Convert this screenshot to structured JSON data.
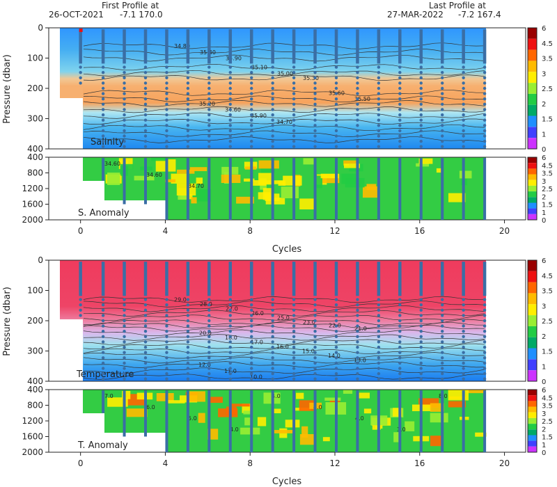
{
  "header": {
    "first_profile_label": "First Profile at",
    "first_profile_date": "26-OCT-2021",
    "first_profile_position": "-7.1  170.0",
    "last_profile_label": "Last Profile at",
    "last_profile_date": "27-MAR-2022",
    "last_profile_position": "-7.2  167.4"
  },
  "colors": {
    "profile_line": "#3a6ea5",
    "profile_point": "#3a6ea5",
    "first_profile_marker": "#ee1111",
    "contour": "#333333",
    "colorbar": [
      "#cc33ff",
      "#4040ff",
      "#1f8fff",
      "#00aa66",
      "#22cc44",
      "#99ee33",
      "#ffee00",
      "#ffbb00",
      "#ff6600",
      "#ee1111",
      "#990000"
    ]
  },
  "chart_data": [
    {
      "type": "heatmap",
      "panel": "upper",
      "variable_label": "Salinity",
      "xlabel": "Cycles",
      "ylabel": "Pressure (dbar)",
      "xlim": [
        -1.5,
        21
      ],
      "x_ticks": [
        "0",
        "4",
        "8",
        "12",
        "16",
        "20"
      ],
      "top": {
        "ylim": [
          0,
          400
        ],
        "y_ticks": [
          "0",
          "100",
          "200",
          "300",
          "400"
        ]
      },
      "anomaly": {
        "label": "S. Anomaly",
        "ylim": [
          400,
          2000
        ],
        "y_ticks": [
          "400",
          "800",
          "1200",
          "1600",
          "2000"
        ]
      },
      "colorbar_ticks": [
        "6",
        "4.5",
        "3.5",
        "3",
        "2.5",
        "2",
        "1.5",
        "1",
        "0"
      ],
      "contour_labels": [
        "34.80",
        "35.40",
        "34.90",
        "35.10",
        "35.00",
        "35.30",
        "35.60",
        "35.50",
        "35.20",
        "34.60",
        "35.90",
        "34.70"
      ],
      "anomaly_contour_labels": [
        "34.60",
        "34.60",
        "34.70"
      ],
      "profile_cycles": [
        0,
        1,
        2,
        3,
        4,
        5,
        6,
        7,
        8,
        9,
        10,
        11,
        12,
        13,
        14,
        15,
        16,
        17,
        18,
        19
      ]
    },
    {
      "type": "heatmap",
      "panel": "lower",
      "variable_label": "Temperature",
      "xlabel": "Cycles",
      "ylabel": "Pressure (dbar)",
      "xlim": [
        -1.5,
        21
      ],
      "x_ticks": [
        "0",
        "4",
        "8",
        "12",
        "16",
        "20"
      ],
      "top": {
        "ylim": [
          0,
          400
        ],
        "y_ticks": [
          "0",
          "100",
          "200",
          "300",
          "400"
        ]
      },
      "anomaly": {
        "label": "T. Anomaly",
        "ylim": [
          400,
          2000
        ],
        "y_ticks": [
          "400",
          "800",
          "1200",
          "1600",
          "2000"
        ]
      },
      "colorbar_ticks": [
        "6",
        "4.5",
        "3.5",
        "3",
        "2.5",
        "2",
        "1.5",
        "1",
        "0"
      ],
      "contour_labels": [
        "29.0",
        "28.0",
        "27.0",
        "26.0",
        "25.0",
        "23.0",
        "22.0",
        "21.0",
        "20.0",
        "18.0",
        "17.0",
        "16.0",
        "15.0",
        "14.0",
        "13.0",
        "12.0",
        "11.0",
        "10.0"
      ],
      "anomaly_contour_labels": [
        "7.0",
        "6.0",
        "5.0",
        "4.0",
        "4.0",
        "4.0",
        "4.0",
        "3.0",
        "8.0"
      ],
      "profile_cycles": [
        0,
        1,
        2,
        3,
        4,
        5,
        6,
        7,
        8,
        9,
        10,
        11,
        12,
        13,
        14,
        15,
        16,
        17,
        18,
        19
      ]
    }
  ]
}
